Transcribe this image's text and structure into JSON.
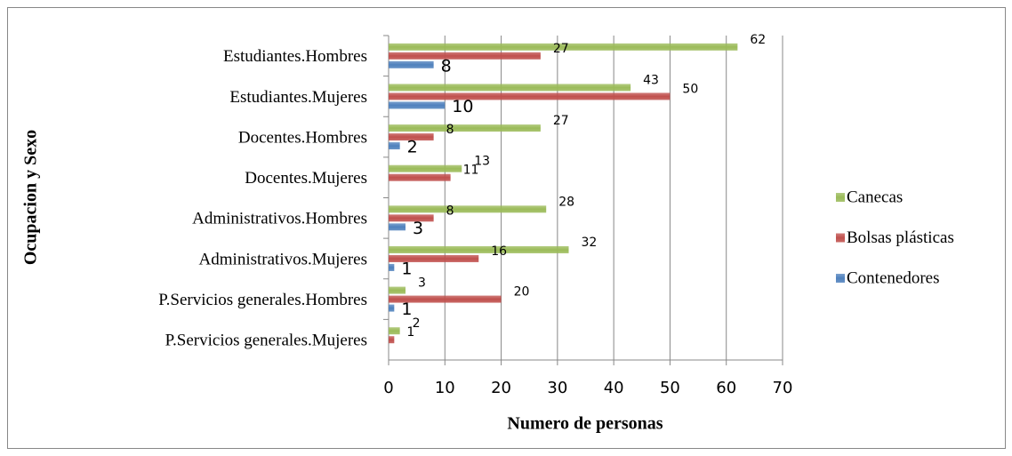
{
  "chart_data": {
    "type": "bar",
    "orientation": "horizontal",
    "x_label": "Numero de personas",
    "y_label": "Ocupacion y Sexo",
    "categories": [
      "Estudiantes.Hombres",
      "Estudiantes.Mujeres",
      "Docentes.Hombres",
      "Docentes.Mujeres",
      "Administrativos.Hombres",
      "Administrativos.Mujeres",
      "P.Servicios generales.Hombres",
      "P.Servicios generales.Mujeres"
    ],
    "series": [
      {
        "name": "Canecas",
        "color": "#9bbb59",
        "values": [
          62,
          43,
          27,
          13,
          28,
          32,
          3,
          2
        ]
      },
      {
        "name": "Bolsas plásticas",
        "color": "#c0504d",
        "values": [
          27,
          50,
          8,
          11,
          8,
          16,
          20,
          1
        ]
      },
      {
        "name": "Contenedores",
        "color": "#4f81bd",
        "values": [
          8,
          10,
          2,
          null,
          3,
          1,
          1,
          null
        ]
      }
    ],
    "xlim": [
      0,
      70
    ],
    "xticks": [
      0,
      10,
      20,
      30,
      40,
      50,
      60,
      70
    ],
    "grid": true,
    "legend": "right"
  }
}
